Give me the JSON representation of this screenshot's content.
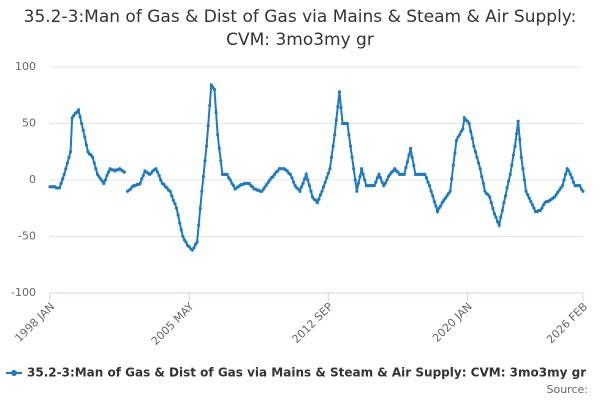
{
  "chart_data": {
    "type": "line",
    "title": "35.2-3:Man of Gas & Dist of Gas via Mains & Steam & Air Supply: CVM: 3mo3my gr",
    "source": "Source:",
    "categories": [
      "1998 JAN",
      null,
      null,
      null,
      null,
      null,
      null,
      null,
      null,
      null,
      null,
      null,
      null,
      null,
      null,
      null,
      null,
      null,
      null,
      null,
      null,
      null,
      null,
      null,
      null,
      null,
      null,
      null,
      null,
      null,
      null,
      null,
      null,
      null,
      null,
      null,
      null,
      null,
      null,
      null,
      null,
      null,
      null,
      null,
      null,
      null,
      null,
      null,
      null,
      null,
      null,
      null,
      null,
      null,
      null,
      null,
      null,
      null,
      null,
      null,
      null,
      null,
      null,
      null,
      null,
      null,
      null,
      null,
      null,
      null,
      null,
      null,
      null,
      null,
      null,
      null,
      null,
      null,
      null,
      null,
      null,
      null,
      null,
      null,
      null,
      null,
      null,
      null,
      "2005 MAY",
      null,
      null,
      null,
      null,
      null,
      null,
      null,
      null,
      null,
      null,
      null,
      null,
      null,
      null,
      null,
      null,
      null,
      null,
      null,
      null,
      null,
      null,
      null,
      null,
      null,
      null,
      null,
      null,
      null,
      null,
      null,
      null,
      null,
      null,
      null,
      null,
      null,
      null,
      null,
      null,
      null,
      null,
      null,
      null,
      null,
      null,
      null,
      null,
      null,
      null,
      null,
      null,
      null,
      null,
      null,
      null,
      null,
      null,
      null,
      null,
      null,
      null,
      null,
      null,
      null,
      null,
      null,
      null,
      null,
      null,
      null,
      null,
      null,
      null,
      null,
      null,
      null,
      null,
      null,
      null,
      null,
      null,
      null,
      null,
      null,
      null,
      null,
      "2012 SEP",
      null,
      null,
      null,
      null,
      null,
      null,
      null,
      null,
      null,
      null,
      null,
      null,
      null,
      null,
      null,
      null,
      null,
      null,
      null,
      null,
      null,
      null,
      null,
      null,
      null,
      null,
      null,
      null,
      null,
      null,
      null,
      null,
      null,
      null,
      null,
      null,
      null,
      null,
      null,
      null,
      null,
      null,
      null,
      null,
      null,
      null,
      null,
      null,
      null,
      null,
      null,
      null,
      null,
      null,
      null,
      null,
      null,
      null,
      null,
      null,
      null,
      null,
      null,
      null,
      null,
      null,
      null,
      null,
      null,
      null,
      null,
      null,
      null,
      null,
      null,
      null,
      null,
      null,
      null,
      null,
      null,
      null,
      null,
      null,
      null,
      null,
      null,
      "2020 JAN",
      null,
      null,
      null,
      null,
      null,
      null,
      null,
      null,
      null,
      null,
      null,
      null,
      null,
      null,
      null,
      null,
      null,
      null,
      null,
      null,
      null,
      null,
      null,
      null,
      null,
      null,
      null,
      null,
      null,
      null,
      null,
      null,
      null,
      null,
      null,
      null,
      null,
      null,
      null,
      null,
      null,
      null,
      null,
      null,
      null,
      null,
      null,
      null,
      null,
      null,
      null,
      null,
      null,
      null,
      null,
      null,
      null,
      null,
      null,
      null,
      null,
      null,
      null,
      null,
      null,
      null,
      null,
      null,
      null,
      null,
      null,
      null,
      "2026 FEB"
    ],
    "series": [
      {
        "name": "35.2-3:Man of Gas & Dist of Gas via Mains & Steam & Air Supply: CVM: 3mo3my gr",
        "color": "#1f7bbf",
        "values": [
          -6,
          -6,
          -6,
          -6,
          -7,
          -7,
          -7,
          -3,
          1,
          5,
          10,
          15,
          20,
          25,
          55,
          57,
          59,
          60,
          62,
          56,
          50,
          44,
          38,
          31,
          25,
          23,
          22,
          20,
          15,
          10,
          5,
          3,
          1,
          -1,
          -3,
          0,
          4,
          7,
          10,
          9,
          9,
          8,
          9,
          9,
          10,
          9,
          8,
          7,
          null,
          -10,
          -9,
          -8,
          -6,
          -5,
          -5,
          -4,
          -4,
          -3,
          1,
          4,
          8,
          7,
          6,
          5,
          6,
          8,
          9,
          10,
          7,
          4,
          0,
          -3,
          -4,
          -6,
          -7,
          -9,
          -10,
          -14,
          -18,
          -21,
          -25,
          -31,
          -38,
          -44,
          -50,
          -53,
          -55,
          -58,
          -59,
          -61,
          -62,
          -60,
          -57,
          -55,
          -40,
          -25,
          -10,
          3,
          17,
          30,
          48,
          66,
          84,
          82,
          80,
          60,
          40,
          28,
          17,
          5,
          5,
          5,
          5,
          2,
          0,
          -3,
          -5,
          -8,
          -7,
          -6,
          -5,
          -4,
          -4,
          -3,
          -3,
          -3,
          -3,
          -5,
          -6,
          -8,
          -8,
          -9,
          -9,
          -10,
          -10,
          -8,
          -6,
          -4,
          -2,
          0,
          2,
          3,
          5,
          7,
          8,
          10,
          10,
          10,
          10,
          9,
          8,
          6,
          5,
          2,
          -2,
          -5,
          -7,
          -8,
          -10,
          -6,
          -3,
          1,
          5,
          0,
          -5,
          -10,
          -15,
          -17,
          -18,
          -20,
          -17,
          -13,
          -10,
          -6,
          -2,
          2,
          6,
          10,
          20,
          30,
          40,
          53,
          65,
          78,
          64,
          50,
          50,
          50,
          50,
          40,
          30,
          20,
          10,
          0,
          -10,
          -3,
          3,
          10,
          5,
          0,
          -5,
          -5,
          -5,
          -5,
          -5,
          -5,
          -2,
          2,
          5,
          2,
          -2,
          -5,
          -3,
          0,
          3,
          5,
          7,
          8,
          10,
          8,
          7,
          5,
          5,
          5,
          5,
          11,
          16,
          22,
          28,
          20,
          13,
          5,
          5,
          5,
          5,
          5,
          5,
          5,
          2,
          -2,
          -5,
          -10,
          -14,
          -19,
          -23,
          -28,
          -25,
          -23,
          -20,
          -18,
          -16,
          -14,
          -12,
          -10,
          1,
          13,
          24,
          35,
          38,
          40,
          43,
          45,
          55,
          53,
          52,
          50,
          43,
          37,
          30,
          25,
          20,
          15,
          10,
          3,
          -3,
          -10,
          -12,
          -13,
          -15,
          -20,
          -25,
          -30,
          -33,
          -37,
          -40,
          -33,
          -27,
          -20,
          -14,
          -7,
          -1,
          5,
          13,
          22,
          30,
          41,
          52,
          36,
          20,
          10,
          0,
          -10,
          -13,
          -16,
          -19,
          -22,
          -25,
          -28,
          -28,
          -27,
          -27,
          -25,
          -22,
          -20,
          -19,
          -19,
          -18,
          -17,
          -16,
          -15,
          -13,
          -11,
          -9,
          -7,
          -5,
          0,
          5,
          10,
          8,
          5,
          2,
          -2,
          -5,
          -5,
          -5,
          -5,
          -8,
          -10
        ]
      }
    ],
    "ylim": [
      -100,
      100
    ],
    "yticks": [
      -100,
      -50,
      0,
      50,
      100
    ],
    "grid": true,
    "legend": "bottom"
  }
}
